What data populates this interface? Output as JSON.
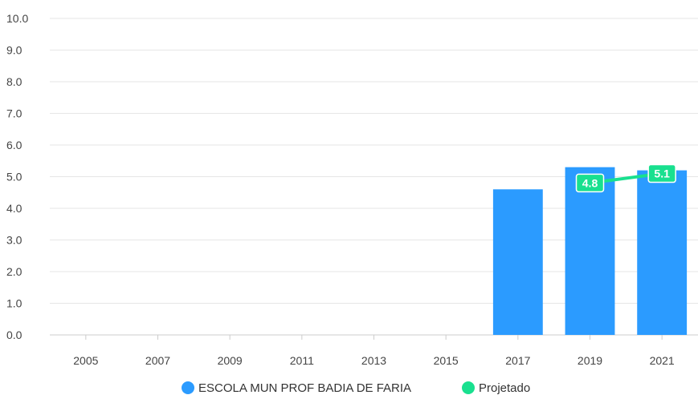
{
  "chart_data": {
    "type": "bar",
    "categories": [
      "2005",
      "2007",
      "2009",
      "2011",
      "2013",
      "2015",
      "2017",
      "2019",
      "2021"
    ],
    "series": [
      {
        "name": "ESCOLA MUN PROF BADIA DE FARIA",
        "type": "bar",
        "color": "#2b9bff",
        "values": [
          null,
          null,
          null,
          null,
          null,
          null,
          4.6,
          5.3,
          5.2
        ]
      },
      {
        "name": "Projetado",
        "type": "line",
        "color": "#19e08f",
        "values": [
          null,
          null,
          null,
          null,
          null,
          null,
          null,
          4.8,
          5.1
        ],
        "labels": [
          "",
          "",
          "",
          "",
          "",
          "",
          "",
          "4.8",
          "5.1"
        ]
      }
    ],
    "y_ticks": [
      "0.0",
      "1.0",
      "2.0",
      "3.0",
      "4.0",
      "5.0",
      "6.0",
      "7.0",
      "8.0",
      "9.0",
      "10.0"
    ],
    "ylim": [
      0,
      10
    ],
    "grid": true,
    "legend_position": "bottom-center"
  }
}
